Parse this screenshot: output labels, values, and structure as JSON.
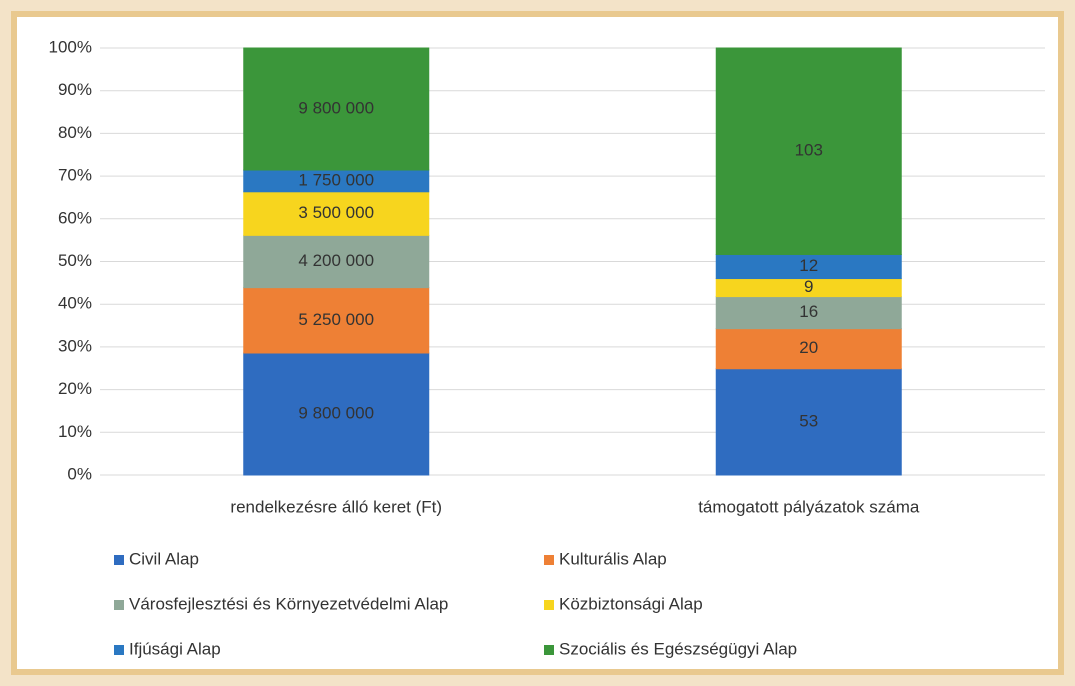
{
  "chart_data": {
    "type": "bar",
    "stacked": "percent",
    "categories": [
      "rendelkezésre álló keret (Ft)",
      "támogatott pályázatok száma"
    ],
    "series": [
      {
        "name": "Civil Alap",
        "color": "#2f6cc0",
        "values": [
          9800000,
          53
        ],
        "value_labels": [
          "9 800 000",
          "53"
        ]
      },
      {
        "name": "Kulturális Alap",
        "color": "#ee8035",
        "values": [
          5250000,
          20
        ],
        "value_labels": [
          "5 250 000",
          "20"
        ]
      },
      {
        "name": "Városfejlesztési és Környezetvédelmi Alap",
        "color": "#8fa898",
        "values": [
          4200000,
          16
        ],
        "value_labels": [
          "4 200 000",
          "16"
        ]
      },
      {
        "name": "Közbiztonsági Alap",
        "color": "#f7d51e",
        "values": [
          3500000,
          9
        ],
        "value_labels": [
          "3 500 000",
          "9"
        ]
      },
      {
        "name": "Ifjúsági Alap",
        "color": "#2a78c2",
        "values": [
          1750000,
          12
        ],
        "value_labels": [
          "1 750 000",
          "12"
        ]
      },
      {
        "name": "Szociális és Egészségügyi Alap",
        "color": "#3b963a",
        "values": [
          9800000,
          103
        ],
        "value_labels": [
          "9 800 000",
          "103"
        ]
      }
    ],
    "ylim": [
      0,
      100
    ],
    "yticks": [
      {
        "value": 0,
        "label": "0%"
      },
      {
        "value": 10,
        "label": "10%"
      },
      {
        "value": 20,
        "label": "20%"
      },
      {
        "value": 30,
        "label": "30%"
      },
      {
        "value": 40,
        "label": "40%"
      },
      {
        "value": 50,
        "label": "50%"
      },
      {
        "value": 60,
        "label": "60%"
      },
      {
        "value": 70,
        "label": "70%"
      },
      {
        "value": 80,
        "label": "80%"
      },
      {
        "value": 90,
        "label": "90%"
      },
      {
        "value": 100,
        "label": "100%"
      }
    ],
    "grid": true
  }
}
